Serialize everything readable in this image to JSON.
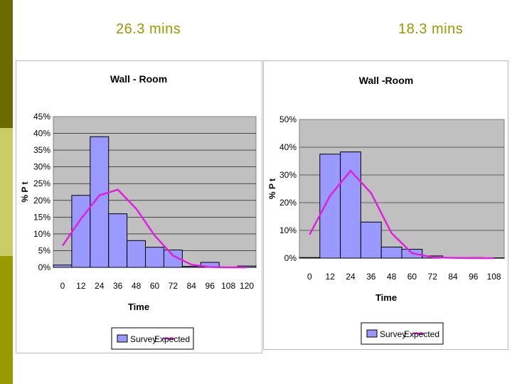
{
  "durations": {
    "left": "26.3 mins",
    "right": "18.3 mins"
  },
  "colors": {
    "bar": "#9999ff",
    "line": "#e020e0",
    "plot_bg": "#c0c0c0",
    "accent": "#999900"
  },
  "chart_data": [
    {
      "type": "bar",
      "title": "Wall - Room",
      "xlabel": "Time",
      "ylabel": "% P t",
      "ylim": [
        0,
        45
      ],
      "y_ticks": [
        "0%",
        "5%",
        "10%",
        "15%",
        "20%",
        "25%",
        "30%",
        "35%",
        "40%",
        "45%"
      ],
      "categories": [
        "0",
        "12",
        "24",
        "36",
        "48",
        "60",
        "72",
        "84",
        "96",
        "108",
        "120"
      ],
      "grid": true,
      "legend_position": "bottom",
      "series": [
        {
          "name": "Survey",
          "type": "bar",
          "values": [
            0.7,
            21.5,
            39,
            16,
            8,
            6,
            5.2,
            0.3,
            1.5,
            0,
            0.4
          ]
        },
        {
          "name": "Expected",
          "type": "line",
          "values": [
            6.5,
            14.5,
            21.5,
            23.2,
            17.5,
            9.5,
            3.5,
            0.8,
            0.1,
            0,
            0
          ]
        }
      ]
    },
    {
      "type": "bar",
      "title": "Wall -Room",
      "xlabel": "Time",
      "ylabel": "% P t",
      "ylim": [
        0,
        50
      ],
      "y_ticks": [
        "0%",
        "10%",
        "20%",
        "30%",
        "40%",
        "50%"
      ],
      "categories": [
        "0",
        "12",
        "24",
        "36",
        "48",
        "60",
        "72",
        "84",
        "96",
        "108"
      ],
      "grid": true,
      "legend_position": "bottom",
      "series": [
        {
          "name": "Survey",
          "type": "bar",
          "values": [
            0.2,
            37.5,
            38.3,
            13,
            4,
            3.2,
            0.8,
            0.2,
            0.2,
            0.1
          ]
        },
        {
          "name": "Expected",
          "type": "line",
          "values": [
            8.5,
            22.5,
            31.5,
            23.5,
            9,
            1.8,
            0.3,
            0.1,
            0,
            0
          ]
        }
      ]
    }
  ]
}
